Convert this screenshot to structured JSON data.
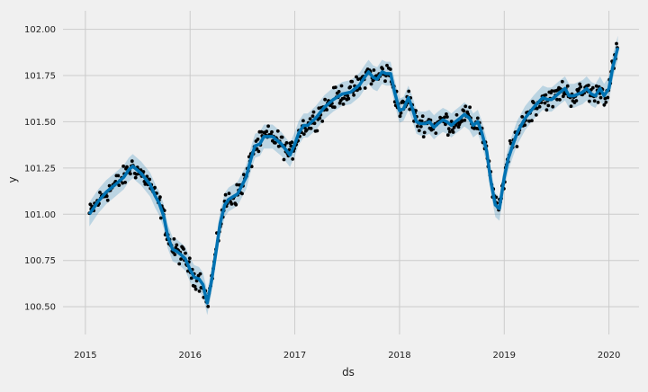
{
  "chart_data": {
    "type": "line",
    "xlabel": "ds",
    "ylabel": "y",
    "xlim": [
      "2014-10-15",
      "2020-04-15"
    ],
    "ylim": [
      100.35,
      102.1
    ],
    "x_ticks": [
      "2015",
      "2016",
      "2017",
      "2018",
      "2019",
      "2020"
    ],
    "y_ticks": [
      "100.50",
      "100.75",
      "101.00",
      "101.25",
      "101.50",
      "101.75",
      "102.00"
    ],
    "grid": true,
    "colors": {
      "background": "#f0f0f0",
      "grid": "#cbcbcb",
      "forecast_line": "#0072B2",
      "uncertainty_band": "#0072B2",
      "observations": "#000000"
    },
    "series": [
      {
        "role": "forecast",
        "x": [
          "2015-01-15",
          "2015-02-15",
          "2015-03-15",
          "2015-04-15",
          "2015-05-15",
          "2015-06-01",
          "2015-06-15",
          "2015-07-15",
          "2015-08-15",
          "2015-09-01",
          "2015-09-15",
          "2015-10-01",
          "2015-10-15",
          "2015-11-01",
          "2015-11-15",
          "2015-12-01",
          "2015-12-15",
          "2016-01-01",
          "2016-01-15",
          "2016-02-01",
          "2016-02-15",
          "2016-03-01",
          "2016-03-15",
          "2016-04-01",
          "2016-04-15",
          "2016-05-01",
          "2016-05-15",
          "2016-06-15",
          "2016-07-15",
          "2016-08-01",
          "2016-08-15",
          "2016-09-01",
          "2016-09-15",
          "2016-10-15",
          "2016-11-15",
          "2016-12-15",
          "2017-01-01",
          "2017-01-15",
          "2017-02-01",
          "2017-02-15",
          "2017-03-15",
          "2017-04-15",
          "2017-05-15",
          "2017-06-15",
          "2017-07-15",
          "2017-08-15",
          "2017-09-01",
          "2017-09-15",
          "2017-10-01",
          "2017-10-15",
          "2017-11-01",
          "2017-11-15",
          "2017-12-01",
          "2017-12-15",
          "2018-01-01",
          "2018-01-15",
          "2018-02-01",
          "2018-02-15",
          "2018-03-01",
          "2018-03-15",
          "2018-04-01",
          "2018-04-15",
          "2018-05-01",
          "2018-05-15",
          "2018-06-01",
          "2018-06-15",
          "2018-07-01",
          "2018-07-15",
          "2018-08-01",
          "2018-08-15",
          "2018-09-01",
          "2018-09-15",
          "2018-10-01",
          "2018-10-15",
          "2018-11-01",
          "2018-11-15",
          "2018-12-01",
          "2018-12-15",
          "2019-01-01",
          "2019-01-15",
          "2019-02-01",
          "2019-02-15",
          "2019-03-15",
          "2019-04-15",
          "2019-05-15",
          "2019-06-01",
          "2019-06-15",
          "2019-07-15",
          "2019-08-01",
          "2019-08-15",
          "2019-09-01",
          "2019-09-15",
          "2019-10-01",
          "2019-10-15",
          "2019-11-01",
          "2019-11-15",
          "2019-12-01",
          "2019-12-15",
          "2020-01-01",
          "2020-01-15",
          "2020-02-01"
        ],
        "y": [
          101.0,
          101.07,
          101.12,
          101.16,
          101.2,
          101.24,
          101.26,
          101.22,
          101.16,
          101.1,
          101.06,
          100.99,
          100.88,
          100.81,
          100.8,
          100.78,
          100.76,
          100.7,
          100.66,
          100.65,
          100.62,
          100.52,
          100.63,
          100.8,
          100.95,
          101.05,
          101.08,
          101.11,
          101.2,
          101.3,
          101.37,
          101.38,
          101.42,
          101.42,
          101.38,
          101.32,
          101.38,
          101.44,
          101.48,
          101.48,
          101.52,
          101.58,
          101.62,
          101.65,
          101.66,
          101.7,
          101.74,
          101.77,
          101.74,
          101.73,
          101.77,
          101.76,
          101.76,
          101.66,
          101.56,
          101.57,
          101.63,
          101.57,
          101.5,
          101.49,
          101.49,
          101.5,
          101.47,
          101.49,
          101.51,
          101.5,
          101.48,
          101.5,
          101.52,
          101.54,
          101.52,
          101.48,
          101.5,
          101.44,
          101.34,
          101.18,
          101.05,
          101.03,
          101.2,
          101.3,
          101.38,
          101.44,
          101.52,
          101.58,
          101.63,
          101.62,
          101.62,
          101.66,
          101.68,
          101.64,
          101.64,
          101.65,
          101.66,
          101.68,
          101.65,
          101.64,
          101.68,
          101.64,
          101.68,
          101.8,
          101.9
        ],
        "band_width": 0.065
      }
    ]
  }
}
